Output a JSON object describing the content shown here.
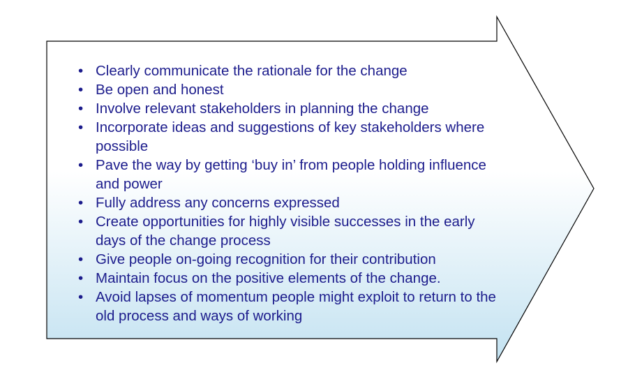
{
  "colors": {
    "text": "#1c1c8c",
    "arrow_outline": "#000000",
    "gradient_top": "#ffffff",
    "gradient_bottom": "#c3e2f1"
  },
  "bullet_symbol": "•",
  "items": [
    "Clearly communicate the rationale for the change",
    "Be open and honest",
    "Involve relevant stakeholders in planning the change",
    "Incorporate ideas and suggestions of key stakeholders where possible",
    "Pave the way by getting ‘buy in’ from people holding influence and power",
    "Fully address any concerns expressed",
    "Create opportunities for highly visible successes in the early days of the change process",
    "Give people on-going recognition for their contribution",
    "Maintain focus on the positive elements of the change.",
    "Avoid lapses of momentum people might exploit to return to the old process and ways of working"
  ]
}
